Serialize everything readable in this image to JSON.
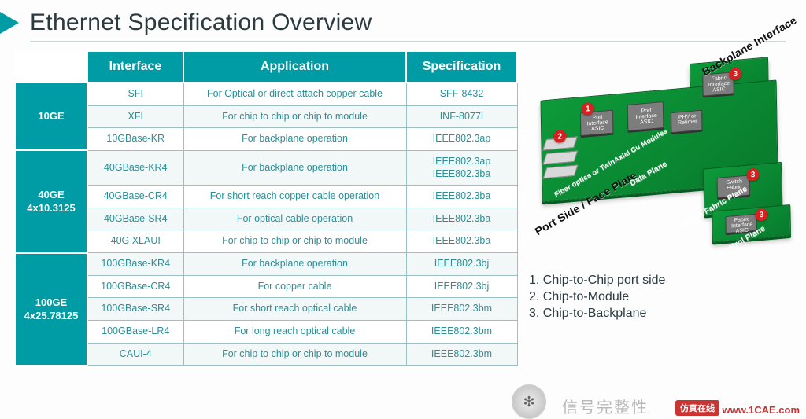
{
  "title": "Ethernet Specification Overview",
  "table": {
    "headers": [
      "Interface",
      "Application",
      "Specification"
    ],
    "groups": [
      {
        "label": "10GE",
        "rows": [
          {
            "iface": "SFI",
            "app": "For Optical or direct-attach copper cable",
            "spec": "SFF-8432",
            "alt": false
          },
          {
            "iface": "XFI",
            "app": "For chip to chip or chip to module",
            "spec": "INF-8077I",
            "alt": true
          },
          {
            "iface": "10GBase-KR",
            "app": "For backplane operation",
            "spec": "IEEE802.3ap",
            "alt": false
          }
        ]
      },
      {
        "label": "40GE\n4x10.3125",
        "rows": [
          {
            "iface": "40GBase-KR4",
            "app": "For backplane operation",
            "spec": "IEEE802.3ap\nIEEE802.3ba",
            "alt": true
          },
          {
            "iface": "40GBase-CR4",
            "app": "For short reach copper cable operation",
            "spec": "IEEE802.3ba",
            "alt": false
          },
          {
            "iface": "40GBase-SR4",
            "app": "For optical cable operation",
            "spec": "IEEE802.3ba",
            "alt": true
          },
          {
            "iface": "40G XLAUI",
            "app": "For chip to chip or chip to module",
            "spec": "IEEE802.3ba",
            "alt": false
          }
        ]
      },
      {
        "label": "100GE\n4x25.78125",
        "rows": [
          {
            "iface": "100GBase-KR4",
            "app": "For backplane operation",
            "spec": "IEEE802.3bj",
            "alt": true
          },
          {
            "iface": "100GBase-CR4",
            "app": "For copper cable",
            "spec": "IEEE802.3bj",
            "alt": false
          },
          {
            "iface": "100GBase-SR4",
            "app": "For short reach optical cable",
            "spec": "IEEE802.3bm",
            "alt": true
          },
          {
            "iface": "100GBase-LR4",
            "app": "For long reach optical cable",
            "spec": "IEEE802.3bm",
            "alt": false
          },
          {
            "iface": "CAUI-4",
            "app": "For chip to chip or chip to module",
            "spec": "IEEE802.3bm",
            "alt": true
          }
        ]
      }
    ]
  },
  "diagram": {
    "backplane_label": "Backplane Interface",
    "portside_label": "Port Side / Face Plate",
    "data_plane": "Data Plane",
    "switch_plane": "Switch Fabric Plane",
    "control_plane": "Control Plane",
    "fiber_label": "Fiber optics or TwinAxial Cu Modules",
    "chips": {
      "c1": "Port Interface ASIC",
      "c2": "Port Interface ASIC",
      "c3": "PHY or Retimer",
      "c4": "Fabric Interface ASIC",
      "c5": "Switch Fabric",
      "c6": "Fabric Interface ASIC"
    },
    "dots": {
      "d1": "2",
      "d2": "1",
      "d3": "3",
      "d4": "3",
      "d5": "3"
    }
  },
  "legend": {
    "l1": "1.   Chip-to-Chip port side",
    "l2": "2.   Chip-to-Module",
    "l3": "3.   Chip-to-Backplane"
  },
  "watermark": {
    "url": "www.1CAE.com",
    "badge": "仿真在线",
    "grey": "信号完整性"
  }
}
